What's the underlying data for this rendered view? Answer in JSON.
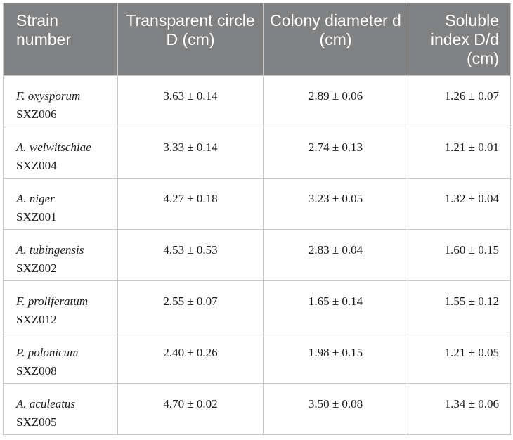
{
  "headers": [
    "Strain number",
    "Transparent circle D (cm)",
    "Colony diameter d (cm)",
    "Soluble index D/d (cm)"
  ],
  "rows": [
    {
      "species": "F. oxysporum",
      "code": "SXZ006",
      "D": "3.63 ± 0.14",
      "d": "2.89 ± 0.06",
      "index": "1.26 ± 0.07"
    },
    {
      "species": "A. welwitschiae",
      "code": "SXZ004",
      "D": "3.33 ± 0.14",
      "d": "2.74 ± 0.13",
      "index": "1.21 ± 0.01"
    },
    {
      "species": "A. niger",
      "code": "SXZ001",
      "D": "4.27 ± 0.18",
      "d": "3.23 ± 0.05",
      "index": "1.32 ± 0.04"
    },
    {
      "species": "A. tubingensis",
      "code": "SXZ002",
      "D": "4.53 ± 0.53",
      "d": "2.83 ± 0.04",
      "index": "1.60 ± 0.15"
    },
    {
      "species": "F. proliferatum",
      "code": "SXZ012",
      "D": "2.55 ± 0.07",
      "d": "1.65 ± 0.14",
      "index": "1.55 ± 0.12"
    },
    {
      "species": "P. polonicum",
      "code": "SXZ008",
      "D": "2.40 ± 0.26",
      "d": "1.98 ± 0.15",
      "index": "1.21 ± 0.05"
    },
    {
      "species": "A. aculeatus",
      "code": "SXZ005",
      "D": "4.70 ± 0.02",
      "d": "3.50 ± 0.08",
      "index": "1.34 ± 0.06"
    }
  ]
}
